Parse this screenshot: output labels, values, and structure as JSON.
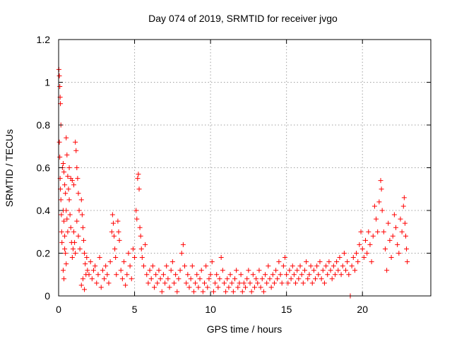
{
  "chart_data": {
    "type": "scatter",
    "title": "Day 074 of 2019, SRMTID for receiver jvgo",
    "xlabel": "GPS time / hours",
    "ylabel": "SRMTID / TECUs",
    "xlim": [
      0,
      24.5
    ],
    "ylim": [
      0,
      1.2
    ],
    "xticks": [
      0,
      5,
      10,
      15,
      20
    ],
    "xtick_labels": [
      "0",
      "5",
      "10",
      "15",
      "20"
    ],
    "yticks": [
      0,
      0.2,
      0.4,
      0.6,
      0.8,
      1.0,
      1.2
    ],
    "ytick_labels": [
      "0",
      "0.2",
      "0.4",
      "0.6",
      "0.8",
      "1",
      "1.2"
    ],
    "grid": true,
    "marker": "plus",
    "color": "#ff0000",
    "series": [
      {
        "name": "SRMTID",
        "points": [
          [
            0.02,
            1.06
          ],
          [
            0.05,
            1.03
          ],
          [
            0.08,
            0.98
          ],
          [
            0.1,
            0.93
          ],
          [
            0.12,
            0.9
          ],
          [
            0.15,
            0.8
          ],
          [
            0.05,
            0.72
          ],
          [
            0.08,
            0.65
          ],
          [
            0.1,
            0.55
          ],
          [
            0.12,
            0.5
          ],
          [
            0.15,
            0.45
          ],
          [
            0.18,
            0.38
          ],
          [
            0.2,
            0.3
          ],
          [
            0.22,
            0.25
          ],
          [
            0.25,
            0.6
          ],
          [
            0.3,
            0.62
          ],
          [
            0.35,
            0.58
          ],
          [
            0.4,
            0.52
          ],
          [
            0.3,
            0.4
          ],
          [
            0.35,
            0.35
          ],
          [
            0.4,
            0.28
          ],
          [
            0.45,
            0.2
          ],
          [
            0.5,
            0.15
          ],
          [
            0.3,
            0.12
          ],
          [
            0.35,
            0.08
          ],
          [
            0.4,
            0.22
          ],
          [
            0.45,
            0.48
          ],
          [
            0.5,
            0.4
          ],
          [
            0.55,
            0.36
          ],
          [
            0.6,
            0.3
          ],
          [
            0.5,
            0.74
          ],
          [
            0.55,
            0.66
          ],
          [
            0.6,
            0.56
          ],
          [
            0.65,
            0.5
          ],
          [
            0.7,
            0.45
          ],
          [
            0.75,
            0.38
          ],
          [
            0.8,
            0.32
          ],
          [
            0.85,
            0.25
          ],
          [
            0.9,
            0.18
          ],
          [
            0.95,
            0.22
          ],
          [
            0.7,
            0.6
          ],
          [
            0.8,
            0.55
          ],
          [
            0.9,
            0.54
          ],
          [
            1.0,
            0.52
          ],
          [
            1.1,
            0.72
          ],
          [
            1.15,
            0.68
          ],
          [
            1.2,
            0.6
          ],
          [
            1.25,
            0.55
          ],
          [
            1.3,
            0.48
          ],
          [
            1.35,
            0.4
          ],
          [
            1.0,
            0.3
          ],
          [
            1.05,
            0.25
          ],
          [
            1.1,
            0.2
          ],
          [
            1.2,
            0.35
          ],
          [
            1.3,
            0.28
          ],
          [
            1.4,
            0.22
          ],
          [
            1.5,
            0.45
          ],
          [
            1.55,
            0.38
          ],
          [
            1.6,
            0.32
          ],
          [
            1.65,
            0.26
          ],
          [
            1.7,
            0.2
          ],
          [
            1.75,
            0.15
          ],
          [
            1.8,
            0.1
          ],
          [
            1.5,
            0.05
          ],
          [
            1.6,
            0.08
          ],
          [
            1.7,
            0.03
          ],
          [
            1.85,
            0.18
          ],
          [
            1.9,
            0.12
          ],
          [
            2.0,
            0.1
          ],
          [
            2.1,
            0.16
          ],
          [
            2.2,
            0.08
          ],
          [
            2.3,
            0.12
          ],
          [
            2.4,
            0.14
          ],
          [
            2.5,
            0.06
          ],
          [
            2.6,
            0.1
          ],
          [
            2.7,
            0.18
          ],
          [
            2.8,
            0.04
          ],
          [
            2.9,
            0.12
          ],
          [
            3.0,
            0.08
          ],
          [
            3.1,
            0.14
          ],
          [
            3.2,
            0.1
          ],
          [
            3.3,
            0.06
          ],
          [
            3.4,
            0.16
          ],
          [
            3.5,
            0.3
          ],
          [
            3.55,
            0.38
          ],
          [
            3.6,
            0.34
          ],
          [
            3.65,
            0.28
          ],
          [
            3.7,
            0.22
          ],
          [
            3.75,
            0.18
          ],
          [
            3.8,
            0.1
          ],
          [
            3.9,
            0.35
          ],
          [
            3.95,
            0.3
          ],
          [
            4.0,
            0.26
          ],
          [
            4.1,
            0.12
          ],
          [
            4.2,
            0.08
          ],
          [
            4.3,
            0.16
          ],
          [
            4.4,
            0.05
          ],
          [
            4.5,
            0.1
          ],
          [
            4.6,
            0.2
          ],
          [
            4.7,
            0.14
          ],
          [
            4.8,
            0.08
          ],
          [
            4.9,
            0.22
          ],
          [
            5.0,
            0.18
          ],
          [
            5.1,
            0.4
          ],
          [
            5.15,
            0.36
          ],
          [
            5.2,
            0.55
          ],
          [
            5.25,
            0.57
          ],
          [
            5.3,
            0.5
          ],
          [
            5.35,
            0.32
          ],
          [
            5.4,
            0.28
          ],
          [
            5.45,
            0.22
          ],
          [
            5.5,
            0.18
          ],
          [
            5.6,
            0.14
          ],
          [
            5.7,
            0.24
          ],
          [
            5.8,
            0.1
          ],
          [
            5.9,
            0.06
          ],
          [
            6.0,
            0.12
          ],
          [
            6.1,
            0.08
          ],
          [
            6.2,
            0.14
          ],
          [
            6.3,
            0.04
          ],
          [
            6.4,
            0.1
          ],
          [
            6.5,
            0.06
          ],
          [
            6.6,
            0.12
          ],
          [
            6.7,
            0.08
          ],
          [
            6.8,
            0.02
          ],
          [
            6.9,
            0.1
          ],
          [
            7.0,
            0.06
          ],
          [
            7.1,
            0.14
          ],
          [
            7.2,
            0.08
          ],
          [
            7.3,
            0.04
          ],
          [
            7.4,
            0.12
          ],
          [
            7.5,
            0.16
          ],
          [
            7.6,
            0.06
          ],
          [
            7.7,
            0.1
          ],
          [
            7.8,
            0.02
          ],
          [
            7.9,
            0.08
          ],
          [
            8.0,
            0.12
          ],
          [
            8.1,
            0.2
          ],
          [
            8.2,
            0.24
          ],
          [
            8.3,
            0.14
          ],
          [
            8.4,
            0.06
          ],
          [
            8.5,
            0.1
          ],
          [
            8.6,
            0.04
          ],
          [
            8.7,
            0.08
          ],
          [
            8.8,
            0.14
          ],
          [
            8.9,
            0.02
          ],
          [
            9.0,
            0.06
          ],
          [
            9.1,
            0.1
          ],
          [
            9.2,
            0.04
          ],
          [
            9.3,
            0.08
          ],
          [
            9.4,
            0.12
          ],
          [
            9.5,
            0.02
          ],
          [
            9.6,
            0.06
          ],
          [
            9.7,
            0.14
          ],
          [
            9.8,
            0.04
          ],
          [
            9.9,
            0.08
          ],
          [
            10.0,
            0.1
          ],
          [
            10.1,
            0.16
          ],
          [
            10.2,
            0.02
          ],
          [
            10.3,
            0.06
          ],
          [
            10.4,
            0.1
          ],
          [
            10.5,
            0.04
          ],
          [
            10.6,
            0.08
          ],
          [
            10.7,
            0.18
          ],
          [
            10.8,
            0.12
          ],
          [
            10.9,
            0.06
          ],
          [
            11.0,
            0.02
          ],
          [
            11.1,
            0.08
          ],
          [
            11.2,
            0.04
          ],
          [
            11.3,
            0.1
          ],
          [
            11.4,
            0.06
          ],
          [
            11.5,
            0.02
          ],
          [
            11.6,
            0.08
          ],
          [
            11.7,
            0.12
          ],
          [
            11.8,
            0.04
          ],
          [
            11.9,
            0.06
          ],
          [
            12.0,
            0.1
          ],
          [
            12.1,
            0.02
          ],
          [
            12.2,
            0.06
          ],
          [
            12.3,
            0.04
          ],
          [
            12.4,
            0.08
          ],
          [
            12.5,
            0.12
          ],
          [
            12.6,
            0.06
          ],
          [
            12.7,
            0.02
          ],
          [
            12.8,
            0.1
          ],
          [
            12.9,
            0.04
          ],
          [
            13.0,
            0.08
          ],
          [
            13.1,
            0.06
          ],
          [
            13.2,
            0.12
          ],
          [
            13.3,
            0.04
          ],
          [
            13.4,
            0.08
          ],
          [
            13.5,
            0.02
          ],
          [
            13.6,
            0.1
          ],
          [
            13.7,
            0.06
          ],
          [
            13.8,
            0.14
          ],
          [
            13.9,
            0.08
          ],
          [
            14.0,
            0.04
          ],
          [
            14.1,
            0.1
          ],
          [
            14.2,
            0.06
          ],
          [
            14.3,
            0.12
          ],
          [
            14.4,
            0.08
          ],
          [
            14.5,
            0.16
          ],
          [
            14.6,
            0.1
          ],
          [
            14.7,
            0.06
          ],
          [
            14.8,
            0.14
          ],
          [
            14.9,
            0.18
          ],
          [
            15.0,
            0.1
          ],
          [
            15.1,
            0.06
          ],
          [
            15.2,
            0.12
          ],
          [
            15.3,
            0.08
          ],
          [
            15.4,
            0.14
          ],
          [
            15.5,
            0.1
          ],
          [
            15.6,
            0.06
          ],
          [
            15.7,
            0.12
          ],
          [
            15.8,
            0.08
          ],
          [
            15.9,
            0.14
          ],
          [
            16.0,
            0.1
          ],
          [
            16.1,
            0.06
          ],
          [
            16.2,
            0.12
          ],
          [
            16.3,
            0.16
          ],
          [
            16.4,
            0.08
          ],
          [
            16.5,
            0.1
          ],
          [
            16.6,
            0.14
          ],
          [
            16.7,
            0.06
          ],
          [
            16.8,
            0.12
          ],
          [
            16.9,
            0.08
          ],
          [
            17.0,
            0.14
          ],
          [
            17.1,
            0.1
          ],
          [
            17.2,
            0.16
          ],
          [
            17.3,
            0.08
          ],
          [
            17.4,
            0.12
          ],
          [
            17.5,
            0.06
          ],
          [
            17.6,
            0.14
          ],
          [
            17.7,
            0.1
          ],
          [
            17.8,
            0.16
          ],
          [
            17.9,
            0.12
          ],
          [
            18.0,
            0.08
          ],
          [
            18.1,
            0.14
          ],
          [
            18.2,
            0.1
          ],
          [
            18.3,
            0.16
          ],
          [
            18.4,
            0.12
          ],
          [
            18.5,
            0.18
          ],
          [
            18.6,
            0.1
          ],
          [
            18.7,
            0.14
          ],
          [
            18.8,
            0.2
          ],
          [
            18.9,
            0.12
          ],
          [
            19.0,
            0.16
          ],
          [
            19.1,
            0.1
          ],
          [
            19.2,
            0.0
          ],
          [
            19.3,
            0.14
          ],
          [
            19.4,
            0.18
          ],
          [
            19.5,
            0.12
          ],
          [
            19.6,
            0.2
          ],
          [
            19.7,
            0.16
          ],
          [
            19.8,
            0.24
          ],
          [
            19.9,
            0.3
          ],
          [
            20.0,
            0.22
          ],
          [
            20.1,
            0.18
          ],
          [
            20.2,
            0.26
          ],
          [
            20.3,
            0.2
          ],
          [
            20.4,
            0.3
          ],
          [
            20.5,
            0.24
          ],
          [
            20.6,
            0.16
          ],
          [
            20.7,
            0.28
          ],
          [
            20.8,
            0.42
          ],
          [
            20.9,
            0.36
          ],
          [
            21.0,
            0.3
          ],
          [
            21.1,
            0.44
          ],
          [
            21.2,
            0.54
          ],
          [
            21.25,
            0.5
          ],
          [
            21.3,
            0.4
          ],
          [
            21.4,
            0.3
          ],
          [
            21.5,
            0.22
          ],
          [
            21.6,
            0.12
          ],
          [
            21.7,
            0.34
          ],
          [
            21.8,
            0.26
          ],
          [
            21.9,
            0.18
          ],
          [
            22.0,
            0.28
          ],
          [
            22.1,
            0.38
          ],
          [
            22.2,
            0.32
          ],
          [
            22.3,
            0.24
          ],
          [
            22.4,
            0.2
          ],
          [
            22.5,
            0.36
          ],
          [
            22.6,
            0.3
          ],
          [
            22.7,
            0.42
          ],
          [
            22.75,
            0.46
          ],
          [
            22.8,
            0.34
          ],
          [
            22.85,
            0.28
          ],
          [
            22.9,
            0.22
          ],
          [
            22.95,
            0.16
          ]
        ]
      }
    ]
  }
}
